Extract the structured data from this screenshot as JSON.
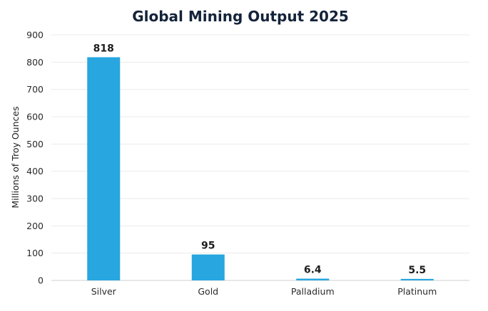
{
  "chart_data": {
    "type": "bar",
    "title": "Global Mining Output 2025",
    "xlabel": "",
    "ylabel": "Millions of Troy Ounces",
    "categories": [
      "Silver",
      "Gold",
      "Palladium",
      "Platinum"
    ],
    "values": [
      818,
      95,
      6.4,
      5.5
    ],
    "data_labels": [
      "818",
      "95",
      "6.4",
      "5.5"
    ],
    "ylim": [
      0,
      900
    ],
    "yticks": [
      0,
      100,
      200,
      300,
      400,
      500,
      600,
      700,
      800,
      900
    ],
    "grid": true,
    "legend": "none",
    "bar_color": "#27a6df"
  }
}
